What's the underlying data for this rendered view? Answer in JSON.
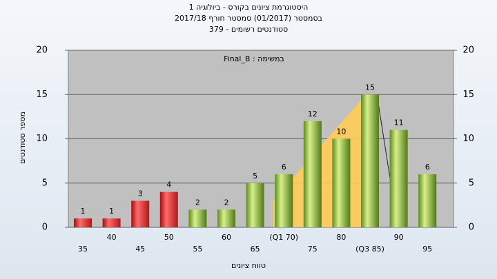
{
  "chart_data": {
    "type": "bar",
    "title": [
      "היסטוגרמת ציונים בקורס - ביולוגיה 1",
      "בסמסטר  (01/2017)  סמסטר חורף 2017/18",
      "סטודנטים רשומים - 379"
    ],
    "annotation": "במשימה : Final_B",
    "ylabel": "מספר סטודנטים",
    "xlabel": "טווח ציונים",
    "categories": [
      "35",
      "40",
      "45",
      "50",
      "55",
      "60",
      "65",
      "(Q1 70)",
      "75",
      "80",
      "(Q3 85)",
      "90",
      "95"
    ],
    "values": [
      1,
      1,
      3,
      4,
      2,
      2,
      5,
      6,
      12,
      10,
      15,
      11,
      6
    ],
    "colors": [
      "red",
      "red",
      "red",
      "red",
      "green",
      "green",
      "green",
      "green",
      "green",
      "green",
      "green",
      "green",
      "green"
    ],
    "ylim": [
      0,
      20
    ],
    "yticks": [
      0,
      5,
      10,
      15,
      20
    ],
    "grid": true
  }
}
